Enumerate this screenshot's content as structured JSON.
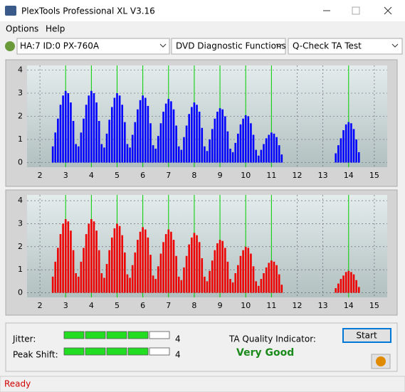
{
  "window": {
    "title": "PlexTools Professional XL V3.16",
    "menu": [
      "Options",
      "Help"
    ],
    "toolbar": [
      "HA:7 ID:0  PX-760A",
      "DVD Diagnostic Functions",
      "Q-Check TA Test"
    ],
    "status": "Ready"
  },
  "chart_data": [
    {
      "type": "bar",
      "color": "#0000ff",
      "grid": true,
      "xlim": [
        1.5,
        15.5
      ],
      "ylim": [
        -0.2,
        4.2
      ],
      "xticks": [
        2,
        3,
        4,
        5,
        6,
        7,
        8,
        9,
        10,
        11,
        12,
        13,
        14,
        15
      ],
      "yticks": [
        0,
        1,
        2,
        3,
        4
      ],
      "markers": [
        3,
        4,
        5,
        6,
        7,
        8,
        9,
        10,
        11,
        14
      ],
      "marker_color": "#00d000",
      "x": [
        2.5,
        2.6,
        2.7,
        2.8,
        2.9,
        3,
        3.1,
        3.2,
        3.3,
        3.4,
        3.5,
        3.6,
        3.7,
        3.8,
        3.9,
        4,
        4.1,
        4.2,
        4.3,
        4.4,
        4.5,
        4.6,
        4.7,
        4.8,
        4.9,
        5,
        5.1,
        5.2,
        5.3,
        5.4,
        5.5,
        5.6,
        5.7,
        5.8,
        5.9,
        6,
        6.1,
        6.2,
        6.3,
        6.4,
        6.5,
        6.6,
        6.7,
        6.8,
        6.9,
        7,
        7.1,
        7.2,
        7.3,
        7.4,
        7.5,
        7.6,
        7.7,
        7.8,
        7.9,
        8,
        8.1,
        8.2,
        8.3,
        8.4,
        8.5,
        8.6,
        8.7,
        8.8,
        8.9,
        9,
        9.1,
        9.2,
        9.3,
        9.4,
        9.5,
        9.6,
        9.7,
        9.8,
        9.9,
        10,
        10.1,
        10.2,
        10.3,
        10.4,
        10.5,
        10.6,
        10.7,
        10.8,
        10.9,
        11,
        11.1,
        11.2,
        11.3,
        11.4,
        13.5,
        13.6,
        13.7,
        13.8,
        13.9,
        14,
        14.1,
        14.2,
        14.3,
        14.4
      ],
      "values": [
        0.7,
        1.3,
        1.9,
        2.5,
        2.9,
        3.1,
        3.0,
        2.6,
        1.8,
        0.8,
        0.7,
        1.3,
        1.9,
        2.5,
        2.9,
        3.1,
        3.0,
        2.6,
        1.8,
        0.8,
        0.65,
        1.25,
        1.85,
        2.4,
        2.8,
        3.0,
        2.9,
        2.5,
        1.75,
        0.8,
        0.65,
        1.2,
        1.75,
        2.3,
        2.7,
        2.9,
        2.8,
        2.45,
        1.7,
        0.75,
        0.6,
        1.15,
        1.7,
        2.2,
        2.55,
        2.75,
        2.65,
        2.3,
        1.6,
        0.7,
        0.55,
        1.1,
        1.6,
        2.1,
        2.4,
        2.6,
        2.5,
        2.2,
        1.5,
        0.7,
        0.5,
        1.0,
        1.45,
        1.9,
        2.2,
        2.35,
        2.3,
        2.0,
        1.35,
        0.6,
        0.45,
        0.85,
        1.25,
        1.65,
        1.9,
        2.05,
        2.0,
        1.7,
        1.2,
        0.55,
        0.3,
        0.55,
        0.8,
        1.05,
        1.2,
        1.3,
        1.25,
        1.1,
        0.75,
        0.35,
        0.4,
        0.75,
        1.05,
        1.4,
        1.65,
        1.75,
        1.7,
        1.45,
        1.0,
        0.45
      ]
    },
    {
      "type": "bar",
      "color": "#ee0000",
      "grid": true,
      "xlim": [
        1.5,
        15.5
      ],
      "ylim": [
        -0.2,
        4.25
      ],
      "xticks": [
        2,
        3,
        4,
        5,
        6,
        7,
        8,
        9,
        10,
        11,
        12,
        13,
        14,
        15
      ],
      "yticks": [
        0,
        1,
        2,
        3,
        4
      ],
      "markers": [
        3,
        4,
        5,
        6,
        7,
        8,
        9,
        10,
        11,
        14
      ],
      "marker_color": "#00d000",
      "x": [
        2.5,
        2.6,
        2.7,
        2.8,
        2.9,
        3,
        3.1,
        3.2,
        3.3,
        3.4,
        3.5,
        3.6,
        3.7,
        3.8,
        3.9,
        4,
        4.1,
        4.2,
        4.3,
        4.4,
        4.5,
        4.6,
        4.7,
        4.8,
        4.9,
        5,
        5.1,
        5.2,
        5.3,
        5.4,
        5.5,
        5.6,
        5.7,
        5.8,
        5.9,
        6,
        6.1,
        6.2,
        6.3,
        6.4,
        6.5,
        6.6,
        6.7,
        6.8,
        6.9,
        7,
        7.1,
        7.2,
        7.3,
        7.4,
        7.5,
        7.6,
        7.7,
        7.8,
        7.9,
        8,
        8.1,
        8.2,
        8.3,
        8.4,
        8.5,
        8.6,
        8.7,
        8.8,
        8.9,
        9,
        9.1,
        9.2,
        9.3,
        9.4,
        9.5,
        9.6,
        9.7,
        9.8,
        9.9,
        10,
        10.1,
        10.2,
        10.3,
        10.4,
        10.5,
        10.6,
        10.7,
        10.8,
        10.9,
        11,
        11.1,
        11.2,
        11.3,
        11.4,
        13.5,
        13.6,
        13.7,
        13.8,
        13.9,
        14,
        14.1,
        14.2,
        14.3,
        14.4
      ],
      "values": [
        0.7,
        1.35,
        1.95,
        2.55,
        3.0,
        3.2,
        3.1,
        2.7,
        1.85,
        0.85,
        0.7,
        1.35,
        1.95,
        2.55,
        3.0,
        3.2,
        3.1,
        2.7,
        1.85,
        0.85,
        0.65,
        1.25,
        1.85,
        2.4,
        2.8,
        3.0,
        2.9,
        2.5,
        1.75,
        0.8,
        0.65,
        1.2,
        1.75,
        2.3,
        2.65,
        2.85,
        2.75,
        2.4,
        1.65,
        0.75,
        0.6,
        1.15,
        1.7,
        2.2,
        2.55,
        2.75,
        2.65,
        2.3,
        1.6,
        0.7,
        0.55,
        1.1,
        1.6,
        2.1,
        2.4,
        2.6,
        2.5,
        2.2,
        1.5,
        0.7,
        0.5,
        0.95,
        1.4,
        1.85,
        2.15,
        2.3,
        2.25,
        1.95,
        1.35,
        0.6,
        0.45,
        0.85,
        1.2,
        1.6,
        1.85,
        2.0,
        1.95,
        1.7,
        1.15,
        0.5,
        0.3,
        0.6,
        0.85,
        1.1,
        1.3,
        1.4,
        1.35,
        1.2,
        0.8,
        0.35,
        0.2,
        0.4,
        0.6,
        0.75,
        0.9,
        0.95,
        0.9,
        0.8,
        0.55,
        0.25
      ]
    }
  ],
  "panel": {
    "jitter": {
      "label": "Jitter:",
      "value": 4
    },
    "peak_shift": {
      "label": "Peak Shift:",
      "value": 4
    },
    "ta_quality": {
      "label": "TA Quality Indicator:",
      "value": "Very Good"
    },
    "start_button": "Start"
  }
}
